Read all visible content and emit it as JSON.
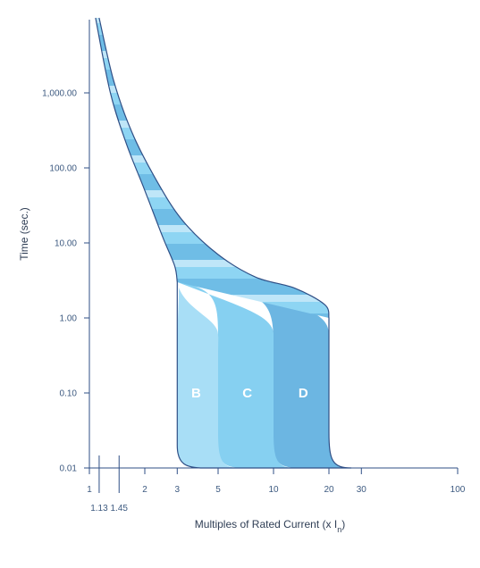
{
  "chart_data": {
    "type": "area",
    "title": "",
    "xlabel": "Multiples of Rated Current (x I",
    "xlabel_subscript": "n",
    "xlabel_suffix": ")",
    "ylabel": "Time (sec.)",
    "x_scale": "log",
    "y_scale": "log",
    "xlim": [
      1,
      100
    ],
    "ylim": [
      0.01,
      10000
    ],
    "x_ticks": [
      {
        "value": 1,
        "label": "1"
      },
      {
        "value": 2,
        "label": "2"
      },
      {
        "value": 3,
        "label": "3"
      },
      {
        "value": 5,
        "label": "5"
      },
      {
        "value": 10,
        "label": "10"
      },
      {
        "value": 20,
        "label": "20"
      },
      {
        "value": 30,
        "label": "30"
      },
      {
        "value": 100,
        "label": "100"
      }
    ],
    "x_ticks_secondary": [
      {
        "value": 1.13,
        "label": "1.13"
      },
      {
        "value": 1.45,
        "label": "1.45"
      }
    ],
    "y_ticks": [
      {
        "value": 0.01,
        "label": "0.01"
      },
      {
        "value": 0.1,
        "label": "0.10"
      },
      {
        "value": 1,
        "label": "1.00"
      },
      {
        "value": 10,
        "label": "10.00"
      },
      {
        "value": 100,
        "label": "100.00"
      },
      {
        "value": 1000,
        "label": "1,000.00"
      }
    ],
    "thermal_band": {
      "left": [
        [
          1.08,
          10000
        ],
        [
          1.3,
          1000
        ],
        [
          1.6,
          200
        ],
        [
          2.0,
          50
        ],
        [
          2.5,
          12
        ],
        [
          2.9,
          5
        ],
        [
          3.0,
          3
        ]
      ],
      "right": [
        [
          1.13,
          10000
        ],
        [
          1.35,
          1500
        ],
        [
          1.7,
          300
        ],
        [
          2.3,
          70
        ],
        [
          3.2,
          20
        ],
        [
          5.0,
          7
        ],
        [
          8.0,
          3.5
        ],
        [
          13,
          2.5
        ],
        [
          19,
          1.5
        ],
        [
          20,
          1
        ]
      ]
    },
    "series": [
      {
        "name": "B",
        "color": "#a8def6",
        "x_min_left": 3,
        "x_min_right": 5,
        "label_x": 3.8,
        "label_y": 0.1
      },
      {
        "name": "C",
        "color": "#86d0f1",
        "x_min_left": 5,
        "x_min_right": 10,
        "label_x": 7.2,
        "label_y": 0.1
      },
      {
        "name": "D",
        "color": "#6cb6e2",
        "x_min_left": 10,
        "x_min_right": 20,
        "label_x": 14.5,
        "label_y": 0.1
      }
    ],
    "band_stripe_colors": [
      "#bfe6f8",
      "#8ed5f3",
      "#6fbde6"
    ],
    "outline_color": "#2f4f86",
    "grid": false,
    "legend": "none"
  }
}
